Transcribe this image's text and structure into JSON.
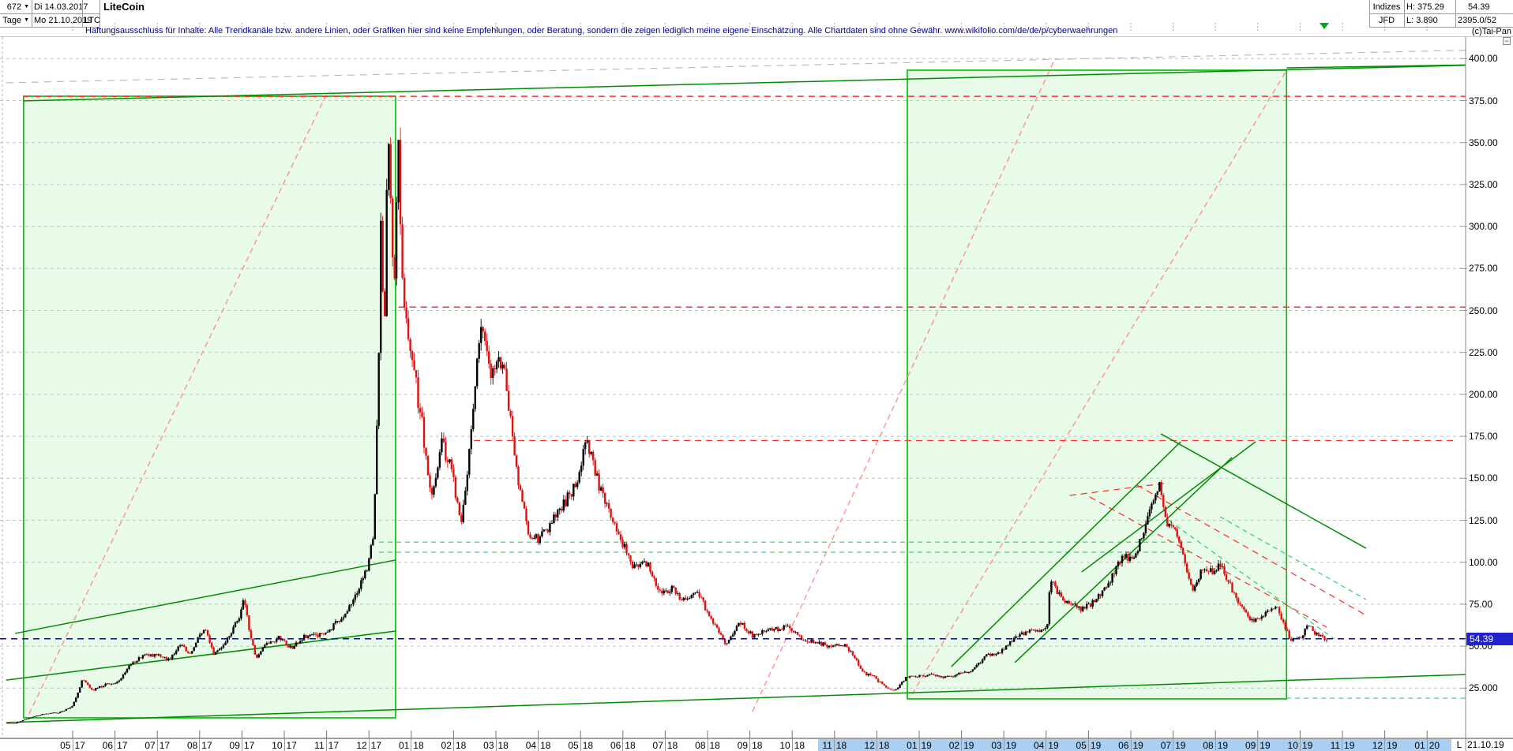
{
  "header": {
    "bars_count": "672",
    "period": "Tage",
    "range_start": "Di 14.03.2017",
    "range_end": "Mo 21.10.2019",
    "symbol": "LTC",
    "title": "LiteCoin",
    "info": {
      "exchange_label": "Indizes",
      "feed_label": "JFD",
      "high": "H: 375.29",
      "low": "L: 3.890",
      "last": "54.39",
      "volume": "2395.0/52",
      "copyright": "(c)Tai-Pan"
    }
  },
  "disclaimer": "Haftungsausschluss für Inhalte: Alle Trendkanäle bzw. andere Linien, oder Grafiken hier sind keine Empfehlungen, oder Beratung, sondern die zeigen lediglich meine eigene Einschätzung. Alle Chartdaten sind ohne Gewähr.  www.wikifolio.com/de/de/p/cyberwaehrungen",
  "icons": {
    "dropdown": "▼",
    "minimize": "−",
    "date_marker": "▼"
  },
  "price_axis": {
    "labels": [
      {
        "text": "400.00",
        "price": 400
      },
      {
        "text": "375.00",
        "price": 375
      },
      {
        "text": "350.00",
        "price": 350
      },
      {
        "text": "325.00",
        "price": 325
      },
      {
        "text": "300.00",
        "price": 300
      },
      {
        "text": "275.00",
        "price": 275
      },
      {
        "text": "250.00",
        "price": 250
      },
      {
        "text": "225.00",
        "price": 225
      },
      {
        "text": "200.00",
        "price": 200
      },
      {
        "text": "175.00",
        "price": 175
      },
      {
        "text": "150.00",
        "price": 150
      },
      {
        "text": "125.00",
        "price": 125
      },
      {
        "text": "100.00",
        "price": 100
      },
      {
        "text": "75.00",
        "price": 75
      },
      {
        "text": "50.00",
        "price": 50
      },
      {
        "text": "25.000",
        "price": 25
      }
    ],
    "current": {
      "text": "54.39",
      "price": 54.39,
      "bg": "#2222cc"
    }
  },
  "time_axis": {
    "months": [
      [
        "05",
        "17"
      ],
      [
        "06",
        "17"
      ],
      [
        "07",
        "17"
      ],
      [
        "08",
        "17"
      ],
      [
        "09",
        "17"
      ],
      [
        "10",
        "17"
      ],
      [
        "11",
        "17"
      ],
      [
        "12",
        "17"
      ],
      [
        "01",
        "18"
      ],
      [
        "02",
        "18"
      ],
      [
        "03",
        "18"
      ],
      [
        "04",
        "18"
      ],
      [
        "05",
        "18"
      ],
      [
        "06",
        "18"
      ],
      [
        "07",
        "18"
      ],
      [
        "08",
        "18"
      ],
      [
        "09",
        "18"
      ],
      [
        "10",
        "18"
      ],
      [
        "11",
        "18"
      ],
      [
        "12",
        "18"
      ],
      [
        "01",
        "19"
      ],
      [
        "02",
        "19"
      ],
      [
        "03",
        "19"
      ],
      [
        "04",
        "19"
      ],
      [
        "05",
        "19"
      ],
      [
        "06",
        "19"
      ],
      [
        "07",
        "19"
      ],
      [
        "08",
        "19"
      ],
      [
        "09",
        "19"
      ],
      [
        "10",
        "19"
      ],
      [
        "11",
        "19"
      ],
      [
        "12",
        "19"
      ],
      [
        "01",
        "20"
      ]
    ],
    "highlight_from": 18,
    "highlight_to": 32,
    "highlight_color": "#a9d0f3",
    "scale_label": "L",
    "cursor_date": "21.10.19"
  },
  "chart_data": {
    "type": "candlestick",
    "title": "LiteCoin",
    "symbol": "LTC",
    "period": "Tage",
    "bars": 672,
    "date_range": [
      "14.03.2017",
      "21.10.2019"
    ],
    "high": 375.29,
    "low": 3.89,
    "last": 54.39,
    "y_range": [
      0,
      412
    ],
    "start_m": -1.57,
    "end_m": 29.65,
    "anchors": [
      [
        -1.57,
        4.2
      ],
      [
        -1.35,
        3.95
      ],
      [
        -1.1,
        6.5
      ],
      [
        -0.7,
        9.5
      ],
      [
        -0.3,
        10.5
      ],
      [
        0,
        14
      ],
      [
        0.25,
        30
      ],
      [
        0.5,
        24
      ],
      [
        0.8,
        27
      ],
      [
        1.1,
        29
      ],
      [
        1.4,
        40
      ],
      [
        1.7,
        44
      ],
      [
        2.0,
        45
      ],
      [
        2.3,
        42
      ],
      [
        2.55,
        51
      ],
      [
        2.8,
        46
      ],
      [
        3.0,
        56
      ],
      [
        3.15,
        62
      ],
      [
        3.35,
        45
      ],
      [
        3.6,
        52
      ],
      [
        3.8,
        60
      ],
      [
        4.0,
        70
      ],
      [
        4.07,
        79
      ],
      [
        4.35,
        43
      ],
      [
        4.6,
        52
      ],
      [
        4.9,
        55
      ],
      [
        5.2,
        49
      ],
      [
        5.5,
        56
      ],
      [
        5.8,
        56
      ],
      [
        6.1,
        60
      ],
      [
        6.4,
        68
      ],
      [
        6.7,
        80
      ],
      [
        6.9,
        92
      ],
      [
        7.0,
        98
      ],
      [
        7.15,
        125
      ],
      [
        7.3,
        300
      ],
      [
        7.38,
        235
      ],
      [
        7.48,
        373
      ],
      [
        7.6,
        262
      ],
      [
        7.72,
        340
      ],
      [
        7.85,
        260
      ],
      [
        8.0,
        232
      ],
      [
        8.25,
        190
      ],
      [
        8.5,
        138
      ],
      [
        8.75,
        172
      ],
      [
        9.0,
        152
      ],
      [
        9.2,
        122
      ],
      [
        9.65,
        243
      ],
      [
        9.9,
        212
      ],
      [
        10.2,
        222
      ],
      [
        10.5,
        158
      ],
      [
        10.8,
        116
      ],
      [
        11.05,
        114
      ],
      [
        11.5,
        130
      ],
      [
        11.95,
        148
      ],
      [
        12.15,
        176
      ],
      [
        12.5,
        142
      ],
      [
        12.9,
        118
      ],
      [
        13.3,
        96
      ],
      [
        13.6,
        99
      ],
      [
        13.95,
        81
      ],
      [
        14.2,
        84
      ],
      [
        14.5,
        76
      ],
      [
        14.8,
        82
      ],
      [
        15.2,
        62
      ],
      [
        15.45,
        51
      ],
      [
        15.8,
        64
      ],
      [
        16.1,
        56
      ],
      [
        16.5,
        60
      ],
      [
        16.9,
        61
      ],
      [
        17.3,
        54
      ],
      [
        17.6,
        52
      ],
      [
        17.9,
        50
      ],
      [
        18.3,
        50
      ],
      [
        18.5,
        43
      ],
      [
        18.7,
        34
      ],
      [
        18.95,
        32
      ],
      [
        19.25,
        25
      ],
      [
        19.45,
        23.5
      ],
      [
        19.7,
        31
      ],
      [
        19.95,
        32
      ],
      [
        20.3,
        33
      ],
      [
        20.6,
        31
      ],
      [
        20.9,
        33
      ],
      [
        21.3,
        36
      ],
      [
        21.6,
        44
      ],
      [
        21.9,
        46
      ],
      [
        22.3,
        55
      ],
      [
        22.6,
        59
      ],
      [
        22.9,
        60
      ],
      [
        23.05,
        61
      ],
      [
        23.12,
        90
      ],
      [
        23.35,
        80
      ],
      [
        23.6,
        75
      ],
      [
        23.9,
        72
      ],
      [
        24.2,
        78
      ],
      [
        24.5,
        88
      ],
      [
        24.8,
        102
      ],
      [
        25.1,
        104
      ],
      [
        25.3,
        116
      ],
      [
        25.5,
        132
      ],
      [
        25.7,
        145
      ],
      [
        25.9,
        122
      ],
      [
        26.1,
        118
      ],
      [
        26.3,
        99
      ],
      [
        26.5,
        82
      ],
      [
        26.7,
        96
      ],
      [
        26.95,
        94
      ],
      [
        27.15,
        99
      ],
      [
        27.5,
        80
      ],
      [
        27.9,
        64
      ],
      [
        28.15,
        68
      ],
      [
        28.45,
        74
      ],
      [
        28.8,
        54
      ],
      [
        29.05,
        55
      ],
      [
        29.2,
        63
      ],
      [
        29.4,
        57
      ],
      [
        29.65,
        54.39
      ]
    ],
    "boxes": [
      {
        "m1": -1.16,
        "p1": 377.6,
        "m2": 7.63,
        "p2": 7.3
      },
      {
        "m1": 19.72,
        "p1": 393.1,
        "m2": 28.68,
        "p2": 18.6
      }
    ],
    "box_fill": "#e8fae8",
    "box_stroke": "#00bc00",
    "lines": [
      {
        "c": "#ff9595",
        "d": "7,5",
        "w": 1.5,
        "pts": [
          -1.03,
          9.6,
          5.99,
          378.5
        ]
      },
      {
        "c": "#ff9595",
        "d": "7,5",
        "w": 1.5,
        "pts": [
          16.06,
          11.0,
          23.21,
          400.0
        ]
      },
      {
        "c": "#ff9595",
        "d": "7,5",
        "w": 1.5,
        "pts": [
          19.83,
          21.4,
          28.68,
          393.0
        ]
      },
      {
        "c": "#ff2a2a",
        "d": "8,6",
        "w": 1.5,
        "pts": [
          -1.16,
          377.5,
          32.91,
          377.5
        ]
      },
      {
        "c": "#ff2a2a",
        "d": "8,6",
        "w": 1.5,
        "pts": [
          7.7,
          252.0,
          32.91,
          252.0
        ]
      },
      {
        "c": "#ff2a2a",
        "d": "8,6",
        "w": 1.2,
        "pts": [
          9.48,
          172.5,
          32.7,
          172.5
        ]
      },
      {
        "c": "#ff2a2a",
        "d": "8,6",
        "w": 1.2,
        "pts": [
          24.03,
          138.9,
          29.63,
          61.3
        ]
      },
      {
        "c": "#ff2a2a",
        "d": "8,6",
        "w": 1.2,
        "pts": [
          25.15,
          145.9,
          30.56,
          68.4
        ]
      },
      {
        "c": "#ff2a2a",
        "d": "8,6",
        "w": 1.2,
        "pts": [
          23.56,
          139.8,
          25.9,
          147.3
        ]
      },
      {
        "c": "#33cc66",
        "d": "6,5",
        "w": 1.2,
        "pts": [
          7.24,
          112.0,
          26.49,
          112.0
        ]
      },
      {
        "c": "#33cc66",
        "d": "6,5",
        "w": 1.2,
        "pts": [
          7.24,
          106.0,
          26.49,
          106.0
        ]
      },
      {
        "c": "#33cc66",
        "d": "6,5",
        "w": 1.2,
        "pts": [
          28.68,
          19.0,
          32.91,
          19.0
        ]
      },
      {
        "c": "#33cc66",
        "d": "6,5",
        "w": 1.2,
        "pts": [
          25.9,
          124.8,
          29.81,
          54.3
        ]
      },
      {
        "c": "#33cc66",
        "d": "6,5",
        "w": 1.2,
        "pts": [
          27.11,
          127.1,
          30.56,
          77.8
        ]
      },
      {
        "c": "#bbbbbb",
        "d": "9,7",
        "w": 1.2,
        "pts": [
          -1.57,
          385.6,
          32.91,
          405.0
        ]
      },
      {
        "c": "#008c00",
        "d": "",
        "w": 1.5,
        "pts": [
          -1.16,
          374.8,
          32.91,
          396.0
        ]
      },
      {
        "c": "#008c00",
        "d": "",
        "w": 1.5,
        "pts": [
          28.68,
          394.5,
          32.91,
          396.2
        ]
      },
      {
        "c": "#008c00",
        "d": "",
        "w": 1.5,
        "pts": [
          -1.57,
          4.5,
          32.91,
          33.1
        ]
      },
      {
        "c": "#008c00",
        "d": "",
        "w": 1.5,
        "pts": [
          -1.36,
          57.6,
          7.63,
          101.3
        ]
      },
      {
        "c": "#008c00",
        "d": "",
        "w": 1.5,
        "pts": [
          -1.57,
          29.8,
          7.63,
          59.0
        ]
      },
      {
        "c": "#008c00",
        "d": "",
        "w": 1.5,
        "pts": [
          20.76,
          37.8,
          26.18,
          171.8
        ]
      },
      {
        "c": "#008c00",
        "d": "",
        "w": 1.5,
        "pts": [
          22.26,
          40.2,
          27.39,
          162.4
        ]
      },
      {
        "c": "#008c00",
        "d": "",
        "w": 1.5,
        "pts": [
          23.84,
          94.2,
          27.95,
          171.8
        ]
      },
      {
        "c": "#008c00",
        "d": "",
        "w": 1.5,
        "pts": [
          25.71,
          176.5,
          30.56,
          108.3
        ]
      }
    ],
    "current_price_line": {
      "c": "#0000e8",
      "d": "8,6",
      "w": 1.5,
      "price": 54.39
    },
    "vertical_dashed_month": -1.66,
    "colors": {
      "up": "#000000",
      "down": "#dd1111",
      "grid": "#c2c2c2",
      "axis": "#444444"
    }
  }
}
